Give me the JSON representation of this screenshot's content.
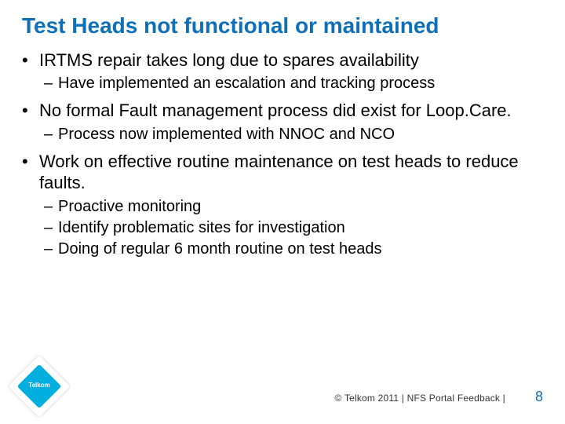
{
  "colors": {
    "title": "#0f6fb7",
    "text": "#000000",
    "logo_bg": "#00aee0",
    "pagenum": "#0f6fb7",
    "footer_text": "#333333"
  },
  "typography": {
    "title_fontsize": 28,
    "body_fontsize": 22,
    "sub_fontsize": 20,
    "footer_fontsize": 12,
    "pagenum_fontsize": 18,
    "title_weight": "bold"
  },
  "title": "Test Heads not functional or maintained",
  "bullets": [
    {
      "text": "IRTMS repair takes long due to spares availability",
      "sub": [
        "Have implemented an escalation and tracking process"
      ]
    },
    {
      "text": "No formal Fault management process did exist for Loop.Care.",
      "sub": [
        "Process now implemented with NNOC and NCO"
      ]
    },
    {
      "text": "Work on effective routine maintenance on test heads to reduce faults.",
      "sub": [
        "Proactive monitoring",
        "Identify problematic sites for investigation",
        "Doing of regular 6 month routine on test heads"
      ]
    }
  ],
  "logo_text": "Telkom",
  "footer": "©  Telkom 2011   |   NFS Portal Feedback |",
  "page_number": "8"
}
